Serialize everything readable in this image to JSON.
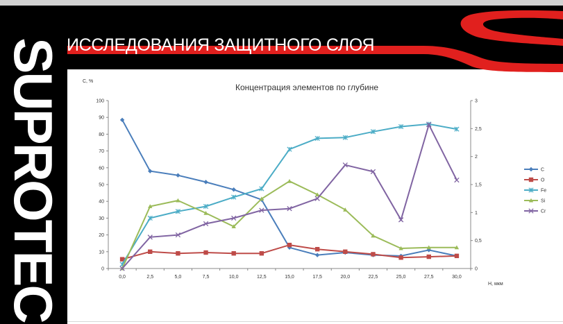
{
  "slide": {
    "title": "ИССЛЕДОВАНИЯ ЗАЩИТНОГО СЛОЯ",
    "logo_text": "SUPROTEC"
  },
  "colors": {
    "header_bg": "#000000",
    "accent_red": "#e1201e"
  },
  "chart_data": {
    "type": "line",
    "title": "Концентрация элементов по глубине",
    "ylabel": "C, %",
    "xlabel": "H, мкм",
    "x": [
      "0,0",
      "2,5",
      "5,0",
      "7,5",
      "10,0",
      "12,5",
      "15,0",
      "17,5",
      "20,0",
      "22,5",
      "25,0",
      "27,5",
      "30,0"
    ],
    "ylim": [
      0,
      100
    ],
    "yticks": [
      "0",
      "10",
      "20",
      "30",
      "40",
      "50",
      "60",
      "70",
      "80",
      "90",
      "100"
    ],
    "y2lim": [
      0,
      3
    ],
    "y2ticks": [
      "0",
      "0,5",
      "1",
      "1,5",
      "2",
      "2,5",
      "3"
    ],
    "legend_position": "right",
    "series": [
      {
        "name": "C",
        "axis": "left",
        "color": "#4a7ebb",
        "marker": "diamond",
        "values": [
          88.5,
          58,
          55.5,
          51.5,
          47,
          41,
          12.5,
          8,
          9.5,
          8,
          7.5,
          11,
          7.5
        ]
      },
      {
        "name": "O",
        "axis": "left",
        "color": "#be4b48",
        "marker": "square",
        "values": [
          5.5,
          10,
          9,
          9.5,
          9,
          9,
          14,
          11.5,
          10,
          8.5,
          6.5,
          7,
          7.5
        ]
      },
      {
        "name": "Fe",
        "axis": "left",
        "color": "#4bacc6",
        "marker": "star",
        "values": [
          2.5,
          30,
          34,
          37,
          42.5,
          47.5,
          71,
          77.5,
          78,
          81.5,
          84.5,
          86,
          83
        ]
      },
      {
        "name": "Si",
        "axis": "left",
        "color": "#9bbb59",
        "marker": "triangle",
        "values": [
          0,
          37,
          40.5,
          33,
          25,
          41.5,
          52,
          44,
          35,
          19.5,
          12,
          12.5,
          12.5
        ]
      },
      {
        "name": "Cr",
        "axis": "right",
        "color": "#8064a2",
        "marker": "x",
        "values": [
          0,
          0.56,
          0.6,
          0.8,
          0.9,
          1.04,
          1.07,
          1.25,
          1.85,
          1.73,
          0.87,
          2.57,
          1.58
        ]
      }
    ]
  }
}
